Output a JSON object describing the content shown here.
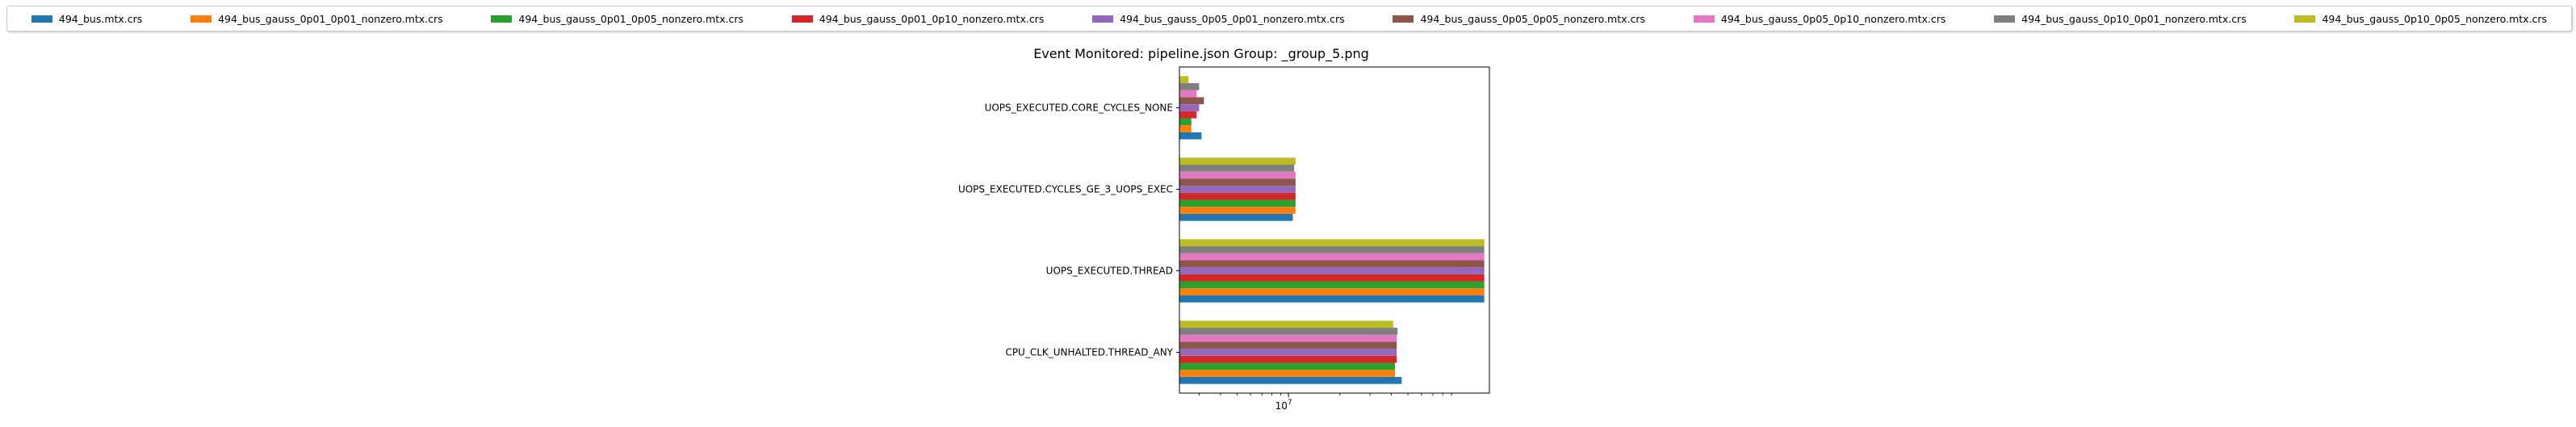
{
  "chart_data": {
    "type": "bar",
    "orientation": "horizontal",
    "title": "Event Monitored: pipeline.json Group: _group_5.png",
    "xlabel": "",
    "ylabel": "",
    "xscale": "log",
    "xlim": [
      2300000,
      150000000
    ],
    "x_tick_labels": [
      {
        "value": 10000000,
        "base": "10",
        "exp": "7"
      }
    ],
    "legend_position": "top",
    "categories": [
      "CPU_CLK_UNHALTED.THREAD_ANY",
      "UOPS_EXECUTED.THREAD",
      "UOPS_EXECUTED.CYCLES_GE_3_UOPS_EXEC",
      "UOPS_EXECUTED.CORE_CYCLES_NONE"
    ],
    "series": [
      {
        "name": "494_bus.mtx.crs",
        "color": "#1f77b4",
        "values": [
          46000000,
          140000000,
          10600000,
          3100000
        ]
      },
      {
        "name": "494_bus_gauss_0p01_0p01_nonzero.mtx.crs",
        "color": "#ff7f0e",
        "values": [
          42000000,
          140000000,
          11000000,
          2700000
        ]
      },
      {
        "name": "494_bus_gauss_0p01_0p05_nonzero.mtx.crs",
        "color": "#2ca02c",
        "values": [
          42000000,
          140000000,
          11000000,
          2700000
        ]
      },
      {
        "name": "494_bus_gauss_0p01_0p10_nonzero.mtx.crs",
        "color": "#d62728",
        "values": [
          43000000,
          140000000,
          11000000,
          2900000
        ]
      },
      {
        "name": "494_bus_gauss_0p05_0p01_nonzero.mtx.crs",
        "color": "#9467bd",
        "values": [
          43000000,
          140000000,
          11000000,
          3000000
        ]
      },
      {
        "name": "494_bus_gauss_0p05_0p05_nonzero.mtx.crs",
        "color": "#8c564b",
        "values": [
          43000000,
          140000000,
          11000000,
          3200000
        ]
      },
      {
        "name": "494_bus_gauss_0p05_0p10_nonzero.mtx.crs",
        "color": "#e377c2",
        "values": [
          43000000,
          140000000,
          11000000,
          2900000
        ]
      },
      {
        "name": "494_bus_gauss_0p10_0p01_nonzero.mtx.crs",
        "color": "#7f7f7f",
        "values": [
          43500000,
          140000000,
          10800000,
          3000000
        ]
      },
      {
        "name": "494_bus_gauss_0p10_0p05_nonzero.mtx.crs",
        "color": "#bcbd22",
        "values": [
          41000000,
          140000000,
          11000000,
          2600000
        ]
      }
    ]
  }
}
